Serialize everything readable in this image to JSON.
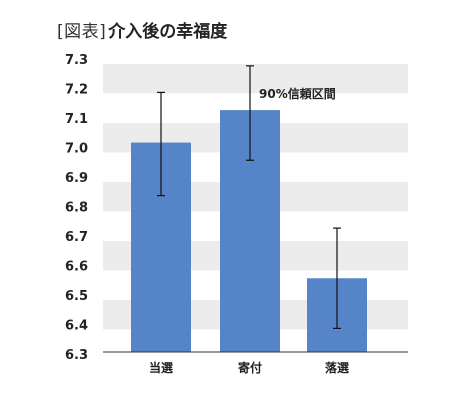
{
  "figure": {
    "prefix": "[図表]",
    "title": "介入後の幸福度"
  },
  "chart_data": {
    "type": "bar",
    "title": "介入後の幸福度",
    "xlabel": "",
    "ylabel": "",
    "categories": [
      "当選",
      "寄付",
      "落選"
    ],
    "values": [
      7.01,
      7.12,
      6.55
    ],
    "error_bars": {
      "label": "90%信頼区間",
      "lower": [
        6.83,
        6.95,
        6.38
      ],
      "upper": [
        7.18,
        7.27,
        6.72
      ]
    },
    "ylim": [
      6.3,
      7.3
    ],
    "yticks": [
      "7.3",
      "7.2",
      "7.1",
      "7.0",
      "6.9",
      "6.8",
      "6.7",
      "6.6",
      "6.5",
      "6.4",
      "6.3"
    ],
    "bar_color": "#5585c8",
    "band_color": "#ececec",
    "grid": true,
    "legend": "none"
  }
}
